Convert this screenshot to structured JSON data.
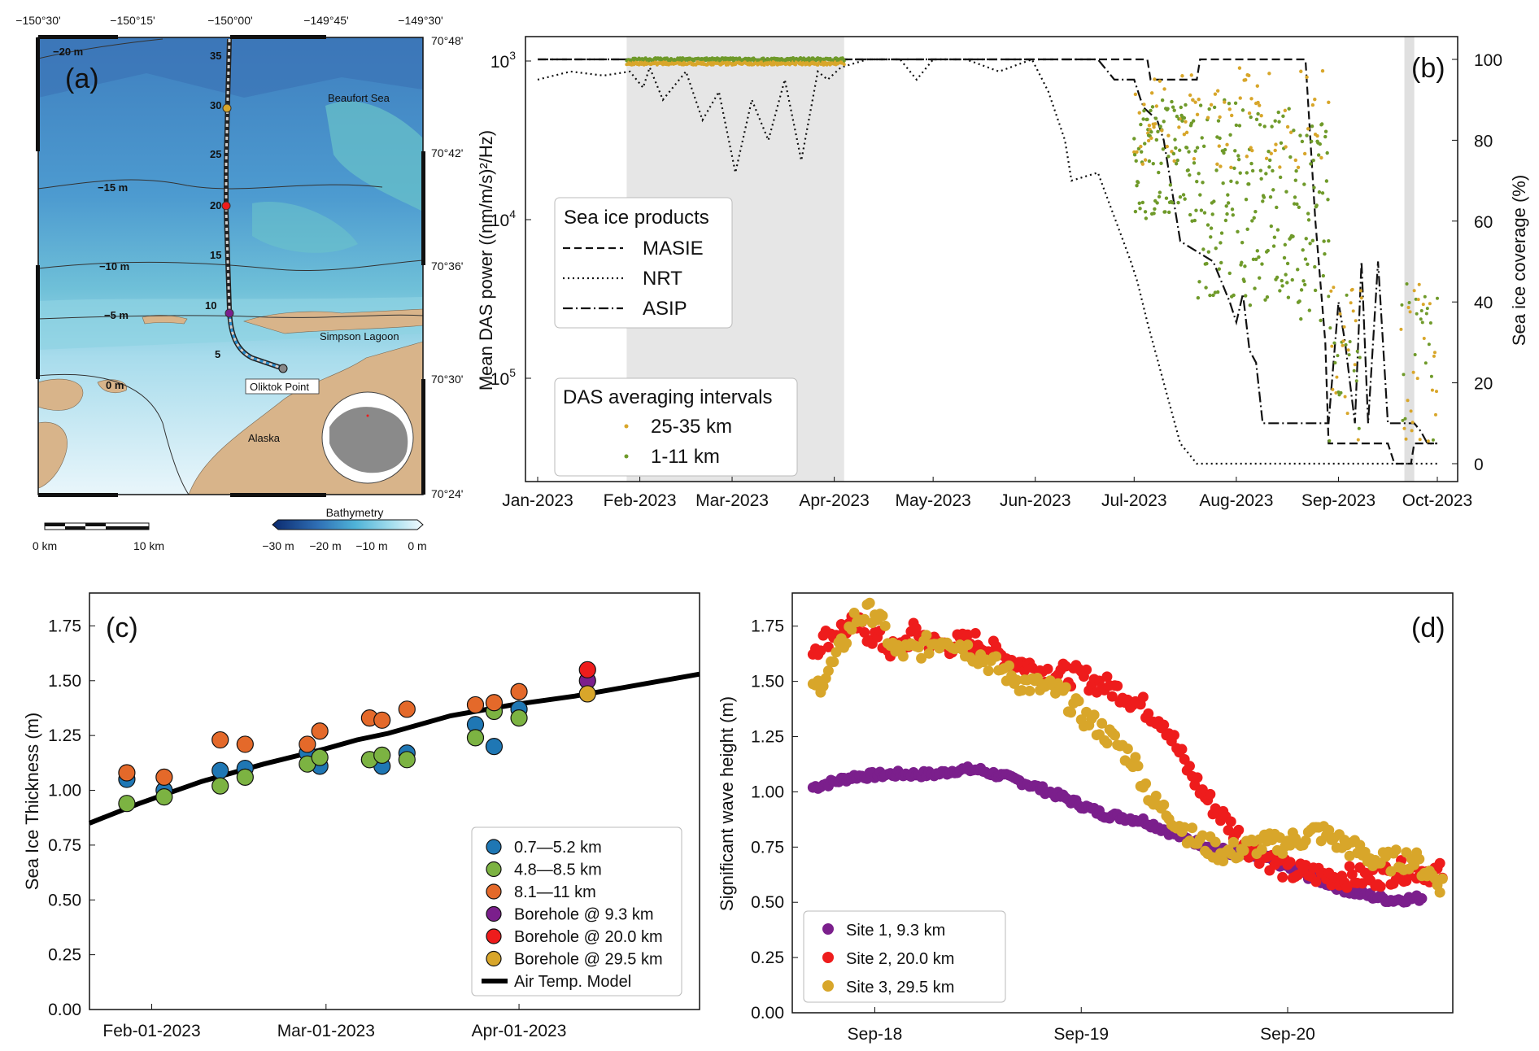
{
  "colors": {
    "blue": "#1f77b4",
    "green": "#7cb342",
    "orange": "#e4692a",
    "purple": "#7b1f8c",
    "red": "#ee1c1c",
    "gold": "#d8a62a",
    "olive": "#6f9a2a",
    "land": "#d8b48a"
  },
  "panel_a": {
    "label": "(a)",
    "top_lon_ticks": [
      "−150°30'",
      "−150°15'",
      "−150°00'",
      "−149°45'",
      "−149°30'"
    ],
    "right_lat_ticks": [
      "70°48'",
      "70°42'",
      "70°36'",
      "70°30'",
      "70°24'"
    ],
    "place_names": {
      "beaufort": "Beaufort Sea",
      "simpson": "Simpson Lagoon",
      "oliktok": "Oliktok Point",
      "alaska": "Alaska"
    },
    "contours": [
      "−20 m",
      "−15 m",
      "−10 m",
      "−5 m",
      "0 m"
    ],
    "cable_km_labels": [
      "35",
      "30",
      "25",
      "20",
      "15",
      "10",
      "5"
    ],
    "scale_bar": {
      "left": "0 km",
      "right": "10 km"
    },
    "colorbar": {
      "title": "Bathymetry",
      "ticks": [
        "−30 m",
        "−20 m",
        "−10 m",
        "0 m"
      ]
    }
  },
  "chart_data": [
    {
      "panel": "(b)",
      "type": "line",
      "title": "",
      "xlabel": "",
      "ylabel": "Mean DAS power ((nm/m/s)²/Hz)",
      "y2label": "Sea ice coverage (%)",
      "x_ticks": [
        "Jan-2023",
        "Feb-2023",
        "Mar-2023",
        "Apr-2023",
        "May-2023",
        "Jun-2023",
        "Jul-2023",
        "Aug-2023",
        "Sep-2023",
        "Oct-2023"
      ],
      "y_ticks": [
        {
          "base": "10",
          "exp": "3"
        },
        {
          "base": "10",
          "exp": "4"
        },
        {
          "base": "10",
          "exp": "5"
        }
      ],
      "y2_ticks": [
        "0",
        "20",
        "40",
        "60",
        "80",
        "100"
      ],
      "y2lim": [
        0,
        100
      ],
      "legend_products": {
        "title": "Sea ice products",
        "items": [
          "MASIE",
          "NRT",
          "ASIP"
        ]
      },
      "legend_das": {
        "title": "DAS averaging intervals",
        "items": [
          "25-35 km",
          "1-11 km"
        ]
      },
      "shaded_windows": [
        [
          "2023-01-28",
          "2023-04-04"
        ],
        [
          "2023-09-21",
          "2023-09-24"
        ]
      ],
      "series": [
        {
          "name": "MASIE",
          "x_day": [
            0,
            150,
            154,
            185,
            186,
            200,
            201,
            233,
            236,
            239,
            240,
            258,
            260,
            265,
            266,
            270,
            272
          ],
          "values": [
            100,
            100,
            100,
            100,
            95,
            95,
            100,
            100,
            60,
            30,
            5,
            5,
            0,
            0,
            5,
            5,
            5
          ]
        },
        {
          "name": "NRT",
          "x_day": [
            0,
            10,
            20,
            28,
            32,
            34,
            38,
            45,
            50,
            55,
            60,
            65,
            70,
            75,
            80,
            85,
            88,
            92,
            100,
            110,
            115,
            120,
            130,
            140,
            150,
            155,
            160,
            162,
            170,
            180,
            182,
            185,
            190,
            195,
            200,
            205,
            207,
            215,
            220,
            225,
            230,
            240,
            250,
            260,
            270,
            273
          ],
          "values": [
            95,
            97,
            96,
            97,
            93,
            98,
            90,
            97,
            85,
            92,
            72,
            90,
            80,
            95,
            75,
            97,
            95,
            98,
            100,
            100,
            95,
            100,
            100,
            97,
            100,
            92,
            80,
            70,
            72,
            50,
            45,
            35,
            20,
            5,
            0,
            0,
            0,
            0,
            0,
            0,
            0,
            0,
            0,
            0,
            0,
            0
          ]
        },
        {
          "name": "ASIP",
          "x_day": [
            0,
            150,
            160,
            165,
            170,
            175,
            181,
            183,
            184,
            188,
            190,
            195,
            205,
            210,
            212,
            214,
            216,
            218,
            220,
            225,
            233,
            235,
            240,
            243,
            245,
            248,
            250,
            252,
            255,
            258,
            260,
            266,
            268,
            270,
            273
          ],
          "values": [
            100,
            100,
            100,
            100,
            100,
            95,
            95,
            90,
            88,
            85,
            80,
            55,
            50,
            40,
            35,
            42,
            28,
            25,
            10,
            10,
            10,
            10,
            10,
            40,
            30,
            10,
            50,
            10,
            50,
            10,
            10,
            10,
            8,
            5,
            5
          ]
        },
        {
          "name": "25-35 km",
          "values_range": [
            [
              26,
              100
            ],
            [
              180,
              99
            ],
            [
              205,
              96
            ],
            [
              240,
              40
            ],
            [
              255,
              25
            ],
            [
              263,
              60
            ]
          ]
        },
        {
          "name": "1-11 km",
          "values_range": [
            [
              26,
              100
            ],
            [
              180,
              90
            ],
            [
              210,
              70
            ],
            [
              250,
              10
            ],
            [
              263,
              25
            ]
          ]
        }
      ]
    },
    {
      "panel": "(c)",
      "type": "scatter",
      "title": "",
      "xlabel": "",
      "ylabel": "Sea Ice Thickness (m)",
      "x_ticks": [
        "Feb-01-2023",
        "Mar-01-2023",
        "Apr-01-2023"
      ],
      "y_ticks": [
        "0.00",
        "0.25",
        "0.50",
        "0.75",
        "1.00",
        "1.25",
        "1.50",
        "1.75"
      ],
      "ylim": [
        0,
        1.9
      ],
      "xlim_days": [
        22,
        120
      ],
      "legend": [
        "0.7—5.2 km",
        "4.8—8.5 km",
        "8.1—11 km",
        "Borehole @   9.3 km",
        "Borehole @ 20.0 km",
        "Borehole @ 29.5 km",
        "Air Temp. Model"
      ],
      "series": [
        {
          "name": "0.7—5.2 km",
          "color": "#1f77b4",
          "x_day": [
            28,
            34,
            43,
            47,
            57,
            59,
            67,
            69,
            73,
            84,
            87,
            91
          ],
          "values": [
            1.05,
            1.0,
            1.09,
            1.1,
            1.17,
            1.11,
            1.14,
            1.11,
            1.17,
            1.3,
            1.2,
            1.37
          ]
        },
        {
          "name": "4.8—8.5 km",
          "color": "#7cb342",
          "x_day": [
            28,
            34,
            43,
            47,
            57,
            59,
            67,
            69,
            73,
            84,
            87,
            91
          ],
          "values": [
            0.94,
            0.97,
            1.02,
            1.06,
            1.12,
            1.15,
            1.14,
            1.16,
            1.14,
            1.24,
            1.36,
            1.33
          ]
        },
        {
          "name": "8.1—11 km",
          "color": "#e4692a",
          "x_day": [
            28,
            34,
            43,
            47,
            57,
            59,
            67,
            69,
            73,
            84,
            87,
            91
          ],
          "values": [
            1.08,
            1.06,
            1.23,
            1.21,
            1.21,
            1.27,
            1.33,
            1.32,
            1.37,
            1.39,
            1.4,
            1.45
          ]
        },
        {
          "name": "Borehole @   9.3 km",
          "color": "#7b1f8c",
          "x_day": [
            102
          ],
          "values": [
            1.5
          ]
        },
        {
          "name": "Borehole @ 20.0 km",
          "color": "#ee1c1c",
          "x_day": [
            102
          ],
          "values": [
            1.55
          ]
        },
        {
          "name": "Borehole @ 29.5 km",
          "color": "#d8a62a",
          "x_day": [
            102
          ],
          "values": [
            1.44
          ]
        },
        {
          "name": "Air Temp. Model",
          "color": "#000000",
          "x_day": [
            22,
            30,
            40,
            50,
            60,
            65,
            70,
            75,
            80,
            90,
            100,
            110,
            120
          ],
          "values": [
            0.85,
            0.94,
            1.04,
            1.12,
            1.19,
            1.23,
            1.26,
            1.3,
            1.34,
            1.39,
            1.43,
            1.48,
            1.53
          ]
        }
      ]
    },
    {
      "panel": "(d)",
      "type": "scatter",
      "title": "",
      "xlabel": "",
      "ylabel": "Significant wave height (m)",
      "x_ticks": [
        "Sep-18",
        "Sep-19",
        "Sep-20"
      ],
      "y_ticks": [
        "0.00",
        "0.25",
        "0.50",
        "0.75",
        "1.00",
        "1.25",
        "1.50",
        "1.75"
      ],
      "ylim": [
        0,
        1.9
      ],
      "xlim_days": [
        17.6,
        20.8
      ],
      "legend": [
        "Site 1, 9.3 km",
        "Site 2, 20.0 km",
        "Site 3, 29.5 km"
      ],
      "series": [
        {
          "name": "Site 1, 9.3 km",
          "color": "#7b1f8c",
          "x": [
            17.7,
            17.9,
            18.1,
            18.3,
            18.4,
            18.5,
            18.7,
            18.9,
            19.1,
            19.3,
            19.5,
            19.7,
            19.9,
            20.1,
            20.3,
            20.5,
            20.65
          ],
          "values": [
            1.02,
            1.07,
            1.08,
            1.08,
            1.1,
            1.1,
            1.05,
            0.98,
            0.9,
            0.87,
            0.79,
            0.73,
            0.7,
            0.62,
            0.55,
            0.51,
            0.52
          ]
        },
        {
          "name": "Site 2, 20.0 km",
          "color": "#ee1c1c",
          "x": [
            17.7,
            17.8,
            17.9,
            18.0,
            18.1,
            18.2,
            18.3,
            18.4,
            18.5,
            18.6,
            18.8,
            19.0,
            19.2,
            19.4,
            19.5,
            19.6,
            19.8,
            20.0,
            20.2,
            20.4,
            20.6,
            20.75
          ],
          "values": [
            1.65,
            1.72,
            1.76,
            1.7,
            1.63,
            1.73,
            1.66,
            1.67,
            1.68,
            1.62,
            1.55,
            1.52,
            1.45,
            1.32,
            1.13,
            0.98,
            0.76,
            0.64,
            0.62,
            0.61,
            0.65,
            0.63
          ]
        },
        {
          "name": "Site 3, 29.5 km",
          "color": "#d8a62a",
          "x": [
            17.7,
            17.8,
            17.9,
            18.0,
            18.1,
            18.2,
            18.35,
            18.5,
            18.7,
            18.9,
            19.0,
            19.1,
            19.25,
            19.35,
            19.45,
            19.55,
            19.7,
            19.85,
            20.0,
            20.15,
            20.3,
            20.45,
            20.6,
            20.75
          ],
          "values": [
            1.45,
            1.58,
            1.78,
            1.82,
            1.63,
            1.64,
            1.7,
            1.62,
            1.5,
            1.45,
            1.35,
            1.28,
            1.15,
            0.95,
            0.88,
            0.78,
            0.72,
            0.76,
            0.77,
            0.82,
            0.75,
            0.68,
            0.7,
            0.58
          ]
        }
      ]
    }
  ]
}
